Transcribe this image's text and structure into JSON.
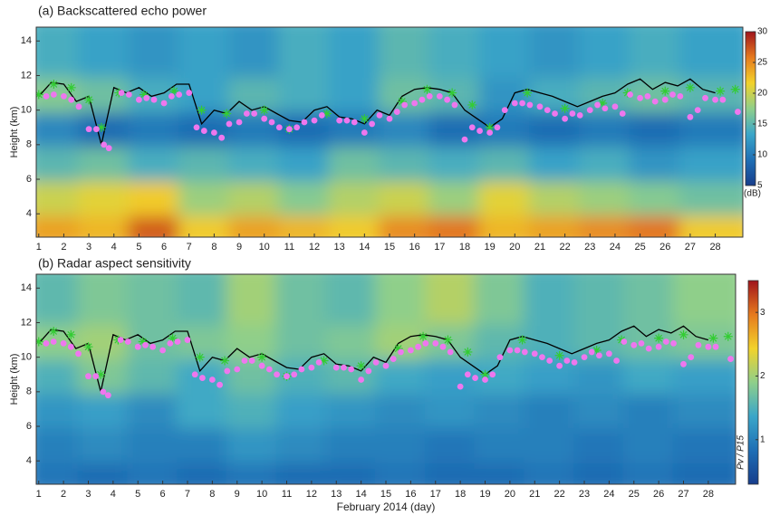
{
  "chart_data": [
    {
      "type": "heatmap",
      "title": "(a) Backscattered echo power",
      "ylabel": "Height (km)",
      "xlim": [
        0.9,
        29.1
      ],
      "xticks": [
        1,
        2,
        3,
        4,
        5,
        6,
        7,
        8,
        9,
        10,
        11,
        12,
        13,
        14,
        15,
        16,
        17,
        18,
        19,
        20,
        21,
        22,
        23,
        24,
        25,
        26,
        27,
        28
      ],
      "ylim": [
        2.65,
        14.8
      ],
      "yticks": [
        4,
        6,
        8,
        10,
        12,
        14
      ],
      "x_edges": [
        0.9,
        3,
        5,
        7,
        9,
        11,
        13,
        15,
        17,
        19,
        21,
        23,
        25,
        27,
        29.1
      ],
      "y_edges": [
        2.65,
        4.5,
        6.5,
        8.5,
        10.5,
        12.5,
        14.8
      ],
      "z": [
        [
          24,
          23,
          27,
          22,
          24,
          23,
          22,
          25,
          26,
          23,
          24,
          25,
          26,
          22
        ],
        [
          20,
          21,
          22,
          18,
          19,
          17,
          19,
          20,
          18,
          21,
          19,
          18,
          17,
          16
        ],
        [
          15,
          16,
          14,
          15,
          14,
          13,
          16,
          15,
          14,
          15,
          13,
          14,
          12,
          13
        ],
        [
          11,
          9,
          10,
          9,
          10,
          9,
          10,
          11,
          9,
          10,
          9,
          10,
          9,
          10
        ],
        [
          17,
          16,
          14,
          13,
          15,
          14,
          13,
          16,
          15,
          12,
          14,
          15,
          16,
          15
        ],
        [
          14,
          13,
          12,
          13,
          12,
          14,
          13,
          15,
          14,
          13,
          12,
          13,
          14,
          13
        ]
      ],
      "colormap": [
        "#173d8c",
        "#1f6fb5",
        "#3aa6c9",
        "#8fcf8a",
        "#f2d22a",
        "#e67a1e",
        "#a0141c"
      ],
      "clim": [
        5,
        30
      ],
      "cticks": [
        5,
        10,
        15,
        20,
        25,
        30
      ],
      "colorbar_label": "(dB)",
      "series": [
        {
          "style": "line",
          "color": "#000000",
          "x": [
            1,
            1.5,
            2,
            2.5,
            3,
            3.5,
            4,
            4.5,
            5,
            5.5,
            6,
            6.5,
            7,
            7.5,
            8,
            8.5,
            9,
            9.5,
            10,
            10.5,
            11,
            11.5,
            12,
            12.5,
            13,
            13.5,
            14,
            14.5,
            15,
            15.5,
            16,
            16.5,
            17,
            17.5,
            18,
            18.5,
            19,
            19.5,
            20,
            20.5,
            21,
            21.5,
            22,
            22.5,
            23,
            23.5,
            24,
            24.5,
            25,
            25.5,
            26,
            26.5,
            27,
            27.5,
            28
          ],
          "values": [
            10.8,
            11.6,
            11.5,
            10.5,
            10.8,
            8.0,
            11.3,
            11.0,
            11.3,
            10.8,
            11.0,
            11.5,
            11.5,
            9.2,
            10.0,
            9.8,
            10.5,
            10.0,
            10.2,
            9.8,
            9.4,
            9.3,
            10.0,
            10.2,
            9.6,
            9.5,
            9.2,
            10.0,
            9.7,
            10.8,
            11.2,
            11.3,
            11.2,
            11.0,
            10.0,
            9.5,
            9.0,
            9.5,
            11.0,
            11.2,
            11.0,
            10.8,
            10.5,
            10.2,
            10.5,
            10.8,
            11.0,
            11.5,
            11.8,
            11.2,
            11.6,
            11.4,
            11.8,
            11.2,
            11.0
          ]
        },
        {
          "style": "stars",
          "color": "#33cc33",
          "x": [
            1,
            1.6,
            2.3,
            3,
            3.5,
            4.2,
            5.2,
            6.4,
            7.5,
            8.5,
            10,
            11,
            12.5,
            14,
            15.5,
            16.5,
            17.5,
            18.3,
            19,
            20.5,
            22,
            23.5,
            24.5,
            26,
            27,
            28.2,
            28.8
          ],
          "values": [
            10.9,
            11.5,
            11.3,
            10.6,
            9.0,
            11.0,
            10.9,
            11.1,
            10.0,
            9.8,
            10.0,
            8.9,
            9.8,
            9.5,
            10.5,
            11.2,
            11.0,
            10.3,
            9.0,
            11.0,
            10.1,
            10.4,
            11.0,
            11.1,
            11.3,
            11.1,
            11.2
          ]
        },
        {
          "style": "dots",
          "color": "#ee77ee",
          "x": [
            1.3,
            1.6,
            2,
            2.3,
            2.6,
            3,
            3.3,
            3.6,
            3.8,
            4.3,
            4.6,
            5,
            5.3,
            5.6,
            6,
            6.3,
            6.6,
            7,
            7.3,
            7.6,
            8,
            8.3,
            8.6,
            9,
            9.3,
            9.6,
            10,
            10.3,
            10.6,
            11,
            11.3,
            11.6,
            12,
            12.3,
            13,
            13.3,
            13.6,
            14,
            14.3,
            14.6,
            15,
            15.3,
            15.6,
            16,
            16.3,
            16.6,
            17,
            17.3,
            17.6,
            18,
            18.3,
            18.6,
            19,
            19.3,
            19.6,
            20,
            20.3,
            20.6,
            21,
            21.3,
            21.6,
            22,
            22.3,
            22.6,
            23,
            23.3,
            23.6,
            24,
            24.3,
            24.6,
            25,
            25.3,
            25.6,
            26,
            26.3,
            26.6,
            27,
            27.3,
            27.6,
            28,
            28.3,
            28.9
          ],
          "values": [
            10.8,
            10.9,
            10.8,
            10.6,
            10.2,
            8.9,
            8.9,
            8.0,
            7.8,
            11.0,
            10.9,
            10.6,
            10.7,
            10.6,
            10.4,
            10.8,
            10.9,
            11.0,
            9.0,
            8.8,
            8.7,
            8.4,
            9.2,
            9.3,
            9.8,
            9.8,
            9.5,
            9.3,
            9.0,
            8.9,
            9.0,
            9.3,
            9.4,
            9.7,
            9.4,
            9.4,
            9.3,
            8.7,
            9.2,
            9.7,
            9.5,
            9.9,
            10.3,
            10.4,
            10.6,
            10.8,
            10.8,
            10.6,
            10.3,
            8.3,
            9.0,
            8.8,
            8.7,
            9.0,
            10.0,
            10.4,
            10.4,
            10.3,
            10.2,
            10.0,
            9.8,
            9.5,
            9.8,
            9.7,
            10.0,
            10.3,
            10.1,
            10.2,
            9.8,
            10.9,
            10.7,
            10.8,
            10.5,
            10.6,
            10.9,
            10.8,
            9.6,
            10.0,
            10.7,
            10.6,
            10.6,
            9.9
          ]
        }
      ]
    },
    {
      "type": "heatmap",
      "title": "(b) Radar aspect sensitivity",
      "ylabel": "Height (km)",
      "xlabel": "February 2014 (day)",
      "xlim": [
        0.9,
        29.1
      ],
      "xticks": [
        1,
        2,
        3,
        4,
        5,
        6,
        7,
        8,
        9,
        10,
        11,
        12,
        13,
        14,
        15,
        16,
        17,
        18,
        19,
        20,
        21,
        22,
        23,
        24,
        25,
        26,
        27,
        28
      ],
      "ylim": [
        2.65,
        14.8
      ],
      "yticks": [
        4,
        6,
        8,
        10,
        12,
        14
      ],
      "x_edges": [
        0.9,
        3,
        5,
        7,
        9,
        11,
        13,
        15,
        17,
        19,
        21,
        23,
        25,
        27,
        29.1
      ],
      "y_edges": [
        2.65,
        4.5,
        6.5,
        8.5,
        10.5,
        12.5,
        14.8
      ],
      "z": [
        [
          0.9,
          0.8,
          0.9,
          0.8,
          0.9,
          0.8,
          0.8,
          0.9,
          0.8,
          0.8,
          0.9,
          0.8,
          0.9,
          0.8
        ],
        [
          1.0,
          1.1,
          1.0,
          1.0,
          1.2,
          1.1,
          1.0,
          1.0,
          0.9,
          1.0,
          1.0,
          0.9,
          1.0,
          0.9
        ],
        [
          1.2,
          1.3,
          1.1,
          1.4,
          1.5,
          1.3,
          1.2,
          1.1,
          1.2,
          1.1,
          1.0,
          1.1,
          1.0,
          1.1
        ],
        [
          1.5,
          1.8,
          1.6,
          1.4,
          1.7,
          1.5,
          1.6,
          1.4,
          1.3,
          1.4,
          1.3,
          1.2,
          1.4,
          1.3
        ],
        [
          1.9,
          2.0,
          1.7,
          1.8,
          1.9,
          1.7,
          1.8,
          2.0,
          1.8,
          1.6,
          1.5,
          1.6,
          1.7,
          1.8
        ],
        [
          1.6,
          1.8,
          1.7,
          1.6,
          2.0,
          1.7,
          1.6,
          1.9,
          2.1,
          1.8,
          1.5,
          1.6,
          1.7,
          1.9
        ]
      ],
      "colormap": [
        "#173d8c",
        "#1f6fb5",
        "#3aa6c9",
        "#8fcf8a",
        "#f2d22a",
        "#e67a1e",
        "#a0141c"
      ],
      "clim": [
        0.3,
        3.5
      ],
      "cticks": [
        1,
        2,
        3
      ],
      "colorbar_label": "Pv / P15",
      "series": [
        {
          "style": "line",
          "color": "#000000",
          "x": [
            1,
            1.5,
            2,
            2.5,
            3,
            3.5,
            4,
            4.5,
            5,
            5.5,
            6,
            6.5,
            7,
            7.5,
            8,
            8.5,
            9,
            9.5,
            10,
            10.5,
            11,
            11.5,
            12,
            12.5,
            13,
            13.5,
            14,
            14.5,
            15,
            15.5,
            16,
            16.5,
            17,
            17.5,
            18,
            18.5,
            19,
            19.5,
            20,
            20.5,
            21,
            21.5,
            22,
            22.5,
            23,
            23.5,
            24,
            24.5,
            25,
            25.5,
            26,
            26.5,
            27,
            27.5,
            28
          ],
          "values": [
            10.8,
            11.6,
            11.5,
            10.5,
            10.8,
            8.0,
            11.3,
            11.0,
            11.3,
            10.8,
            11.0,
            11.5,
            11.5,
            9.2,
            10.0,
            9.8,
            10.5,
            10.0,
            10.2,
            9.8,
            9.4,
            9.3,
            10.0,
            10.2,
            9.6,
            9.5,
            9.2,
            10.0,
            9.7,
            10.8,
            11.2,
            11.3,
            11.2,
            11.0,
            10.0,
            9.5,
            9.0,
            9.5,
            11.0,
            11.2,
            11.0,
            10.8,
            10.5,
            10.2,
            10.5,
            10.8,
            11.0,
            11.5,
            11.8,
            11.2,
            11.6,
            11.4,
            11.8,
            11.2,
            11.0
          ]
        },
        {
          "style": "stars",
          "color": "#33cc33",
          "x": [
            1,
            1.6,
            2.3,
            3,
            3.5,
            4.2,
            5.2,
            6.4,
            7.5,
            8.5,
            10,
            11,
            12.5,
            14,
            15.5,
            16.5,
            17.5,
            18.3,
            19,
            20.5,
            22,
            23.5,
            24.5,
            26,
            27,
            28.2,
            28.8
          ],
          "values": [
            10.9,
            11.5,
            11.3,
            10.6,
            9.0,
            11.0,
            10.9,
            11.1,
            10.0,
            9.8,
            10.0,
            8.9,
            9.8,
            9.5,
            10.5,
            11.2,
            11.0,
            10.3,
            9.0,
            11.0,
            10.1,
            10.4,
            11.0,
            11.1,
            11.3,
            11.1,
            11.2
          ]
        },
        {
          "style": "dots",
          "color": "#ee77ee",
          "x": [
            1.3,
            1.6,
            2,
            2.3,
            2.6,
            3,
            3.3,
            3.6,
            3.8,
            4.3,
            4.6,
            5,
            5.3,
            5.6,
            6,
            6.3,
            6.6,
            7,
            7.3,
            7.6,
            8,
            8.3,
            8.6,
            9,
            9.3,
            9.6,
            10,
            10.3,
            10.6,
            11,
            11.3,
            11.6,
            12,
            12.3,
            13,
            13.3,
            13.6,
            14,
            14.3,
            14.6,
            15,
            15.3,
            15.6,
            16,
            16.3,
            16.6,
            17,
            17.3,
            17.6,
            18,
            18.3,
            18.6,
            19,
            19.3,
            19.6,
            20,
            20.3,
            20.6,
            21,
            21.3,
            21.6,
            22,
            22.3,
            22.6,
            23,
            23.3,
            23.6,
            24,
            24.3,
            24.6,
            25,
            25.3,
            25.6,
            26,
            26.3,
            26.6,
            27,
            27.3,
            27.6,
            28,
            28.3,
            28.9
          ],
          "values": [
            10.8,
            10.9,
            10.8,
            10.6,
            10.2,
            8.9,
            8.9,
            8.0,
            7.8,
            11.0,
            10.9,
            10.6,
            10.7,
            10.6,
            10.4,
            10.8,
            10.9,
            11.0,
            9.0,
            8.8,
            8.7,
            8.4,
            9.2,
            9.3,
            9.8,
            9.8,
            9.5,
            9.3,
            9.0,
            8.9,
            9.0,
            9.3,
            9.4,
            9.7,
            9.4,
            9.4,
            9.3,
            8.7,
            9.2,
            9.7,
            9.5,
            9.9,
            10.3,
            10.4,
            10.6,
            10.8,
            10.8,
            10.6,
            10.3,
            8.3,
            9.0,
            8.8,
            8.7,
            9.0,
            10.0,
            10.4,
            10.4,
            10.3,
            10.2,
            10.0,
            9.8,
            9.5,
            9.8,
            9.7,
            10.0,
            10.3,
            10.1,
            10.2,
            9.8,
            10.9,
            10.7,
            10.8,
            10.5,
            10.6,
            10.9,
            10.8,
            9.6,
            10.0,
            10.7,
            10.6,
            10.6,
            9.9
          ]
        }
      ]
    }
  ]
}
